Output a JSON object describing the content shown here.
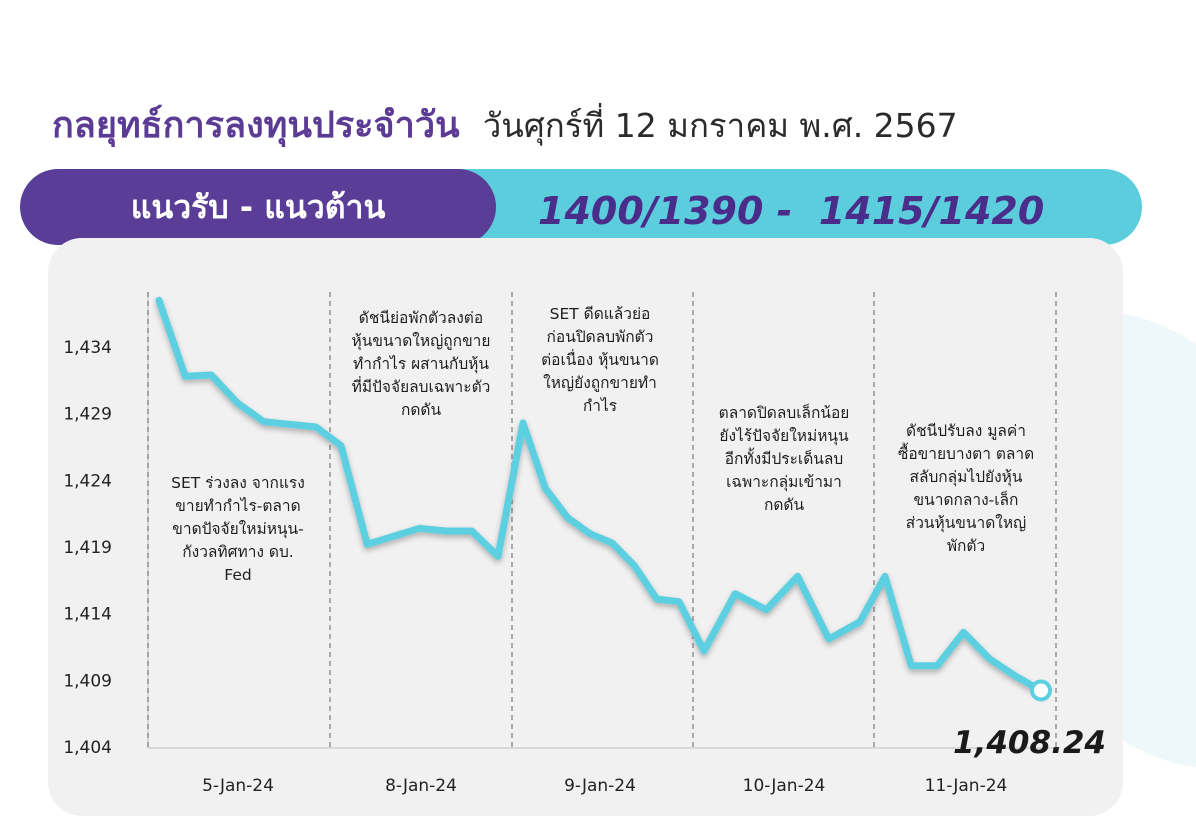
{
  "header": {
    "title": "กลยุทธ์การลงทุนประจำวัน",
    "date": "วันศุกร์ที่ 12 มกราคม พ.ศ. 2567"
  },
  "band": {
    "label": "แนวรับ - แนวต้าน",
    "levels": "1400/1390 -  1415/1420"
  },
  "colors": {
    "purple": "#5a3d96",
    "cyan": "#5bcddd",
    "line": "#5ccfe0",
    "panel": "#f1f1f1"
  },
  "chart_data": {
    "type": "line",
    "ylim": [
      1404,
      1438
    ],
    "yticks": [
      {
        "value": 1434,
        "label": "1,434"
      },
      {
        "value": 1429,
        "label": "1,429"
      },
      {
        "value": 1424,
        "label": "1,424"
      },
      {
        "value": 1419,
        "label": "1,419"
      },
      {
        "value": 1414,
        "label": "1,414"
      },
      {
        "value": 1409,
        "label": "1,409"
      },
      {
        "value": 1404,
        "label": "1,404"
      }
    ],
    "days": [
      {
        "label": "5-Jan-24",
        "note": [
          "SET ร่วงลง จากแรง",
          "ขายทำกำไร-ตลาด",
          "ขาดปัจจัยใหม่หนุน-",
          "กังวลทิศทาง ดบ.",
          "Fed"
        ],
        "values": [
          1437.5,
          1431.8,
          1431.9,
          1429.8,
          1428.4,
          1428.2,
          1428.0
        ]
      },
      {
        "label": "8-Jan-24",
        "note": [
          "ดัชนีย่อพักตัวลงต่อ",
          "หุ้นขนาดใหญ่ถูกขาย",
          "ทำกำไร ผสานกับหุ้น",
          "ที่มีปัจจัยลบเฉพาะตัว",
          "กดดัน"
        ],
        "values": [
          1426.6,
          1419.2,
          1419.8,
          1420.4,
          1420.2,
          1420.2,
          1418.3
        ]
      },
      {
        "label": "9-Jan-24",
        "note": [
          "SET ดีดแล้วย่อ",
          "ก่อนปิดลบพักตัว",
          "ต่อเนื่อง หุ้นขนาด",
          "ใหญ่ยังถูกขายทำ",
          "กำไร"
        ],
        "values": [
          1428.3,
          1423.4,
          1421.2,
          1420.0,
          1419.3,
          1417.6,
          1415.1,
          1414.9
        ]
      },
      {
        "label": "10-Jan-24",
        "note": [
          "ตลาดปิดลบเล็กน้อย",
          "ยังไร้ปัจจัยใหม่หนุน",
          "อีกทั้งมีประเด็นลบ",
          "เฉพาะกลุ่มเข้ามา",
          "กดดัน"
        ],
        "values": [
          1411.2,
          1415.5,
          1414.3,
          1416.8,
          1412.1,
          1413.4
        ]
      },
      {
        "label": "11-Jan-24",
        "note": [
          "ดัชนีปรับลง มูลค่า",
          "ซื้อขายบางตา ตลาด",
          "สลับกลุ่มไปยังหุ้น",
          "ขนาดกลาง-เล็ก",
          "ส่วนหุ้นขนาดใหญ่",
          "พักตัว"
        ],
        "values": [
          1416.8,
          1410.1,
          1410.1,
          1412.6,
          1410.6,
          1409.3,
          1408.24
        ]
      }
    ],
    "last_value_label": "1,408.24"
  }
}
